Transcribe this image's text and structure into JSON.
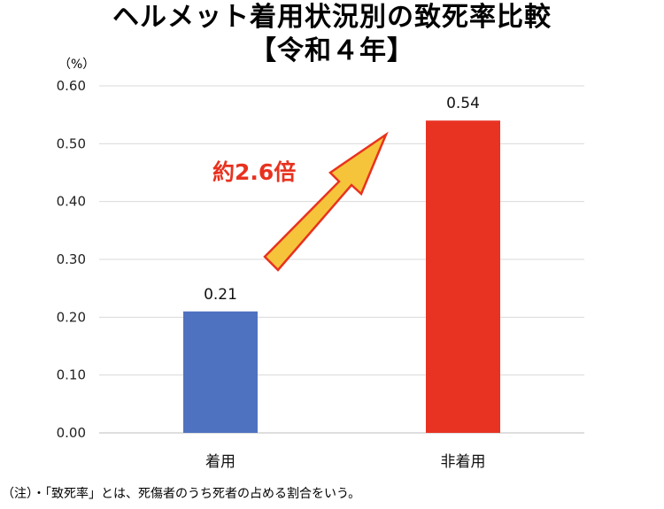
{
  "chart_data": {
    "type": "bar",
    "title": "ヘルメット着用状況別の致死率比較",
    "subtitle": "【令和４年】",
    "ylabel": "（%）",
    "xlabel": "",
    "categories": [
      "着用",
      "非着用"
    ],
    "values": [
      0.21,
      0.54
    ],
    "value_labels": [
      "0.21",
      "0.54"
    ],
    "bar_colors": [
      "#4f72c0",
      "#e83323"
    ],
    "ylim": [
      0,
      0.6
    ],
    "yticks": [
      "0.00",
      "0.10",
      "0.20",
      "0.30",
      "0.40",
      "0.50",
      "0.60"
    ],
    "grid": true,
    "annotation": "約2.6倍",
    "note": "（注）・「致死率」とは、死傷者のうち死者の占める割合をいう。"
  }
}
